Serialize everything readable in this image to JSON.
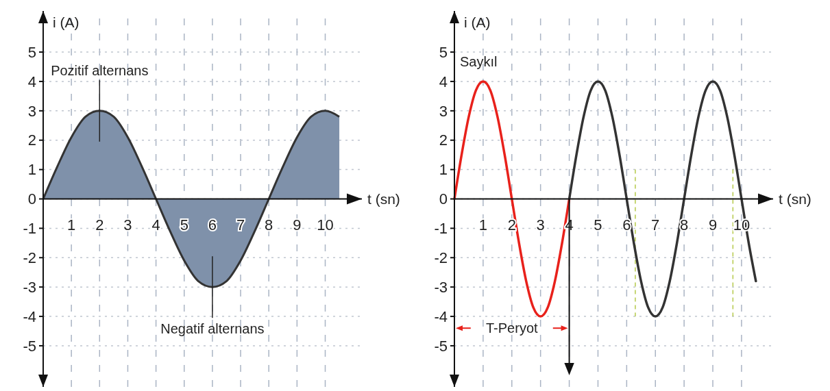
{
  "chart_data": [
    {
      "type": "area",
      "xlabel": "t (sn)",
      "ylabel": "i (A)",
      "xlim": [
        0,
        11.3
      ],
      "ylim": [
        -6.4,
        6.4
      ],
      "xticks": [
        1,
        2,
        3,
        4,
        5,
        6,
        7,
        8,
        9,
        10
      ],
      "yticks": [
        -5,
        -4,
        -3,
        -2,
        -1,
        0,
        1,
        2,
        3,
        4,
        5
      ],
      "grid": true,
      "line_style": "solid",
      "annotations": [
        {
          "text": "Pozitif alternans",
          "x": 2,
          "y": 3
        },
        {
          "text": "Negatif alternans",
          "x": 6,
          "y": -3
        }
      ],
      "series": [
        {
          "color": "#7f91aa",
          "x": [
            0,
            0.5,
            1,
            1.5,
            2,
            2.5,
            3,
            3.5,
            4,
            4.5,
            5,
            5.5,
            6,
            6.5,
            7,
            7.5,
            8,
            8.5,
            9,
            9.5,
            10,
            10.5
          ],
          "values": [
            0,
            1.1,
            2.1,
            2.8,
            3,
            2.8,
            2.1,
            1.1,
            0,
            -1.1,
            -2.1,
            -2.8,
            -3,
            -2.8,
            -2.1,
            -1.1,
            0,
            1.1,
            2.1,
            2.8,
            3,
            2.8
          ]
        }
      ]
    },
    {
      "type": "line",
      "xlabel": "t (sn)",
      "ylabel": "i (A)",
      "xlim": [
        0,
        11.1
      ],
      "ylim": [
        -6.4,
        6.4
      ],
      "xticks": [
        1,
        2,
        3,
        4,
        5,
        6,
        7,
        8,
        9,
        10
      ],
      "yticks": [
        -5,
        -4,
        -3,
        -2,
        -1,
        0,
        1,
        2,
        3,
        4,
        5
      ],
      "grid": true,
      "line_style": "solid",
      "annotations": [
        "Saykıl",
        "T-Peryot"
      ],
      "ref_lines": [
        {
          "axis": "x",
          "value": 6.3,
          "color": "#b5c94a",
          "line_style": "dashed"
        },
        {
          "axis": "x",
          "value": 9.7,
          "color": "#b5c94a",
          "line_style": "dashed"
        }
      ],
      "series": [
        {
          "color": "#e8211b",
          "x": [
            0,
            0.25,
            0.5,
            0.75,
            1,
            1.25,
            1.5,
            1.75,
            2,
            2.25,
            2.5,
            2.75,
            3,
            3.25,
            3.5,
            3.75,
            4
          ],
          "values": [
            0,
            1.5,
            2.8,
            3.7,
            4,
            3.7,
            2.8,
            1.5,
            0,
            -1.5,
            -2.8,
            -3.7,
            -4,
            -3.7,
            -2.8,
            -1.5,
            0
          ]
        },
        {
          "color": "#333333",
          "x": [
            4,
            4.25,
            4.5,
            4.75,
            5,
            5.25,
            5.5,
            5.75,
            6,
            6.25,
            6.5,
            6.75,
            7,
            7.25,
            7.5,
            7.75,
            8,
            8.25,
            8.5,
            8.75,
            9,
            9.25,
            9.5,
            9.75,
            10,
            10.25,
            10.5
          ],
          "values": [
            0,
            1.5,
            2.8,
            3.7,
            4,
            3.7,
            2.8,
            1.5,
            0,
            -1.5,
            -2.8,
            -3.7,
            -4,
            -3.7,
            -2.8,
            -1.5,
            0,
            1.5,
            2.8,
            3.7,
            4,
            3.7,
            2.8,
            1.5,
            0,
            -1.5,
            -2.8
          ]
        }
      ]
    }
  ]
}
